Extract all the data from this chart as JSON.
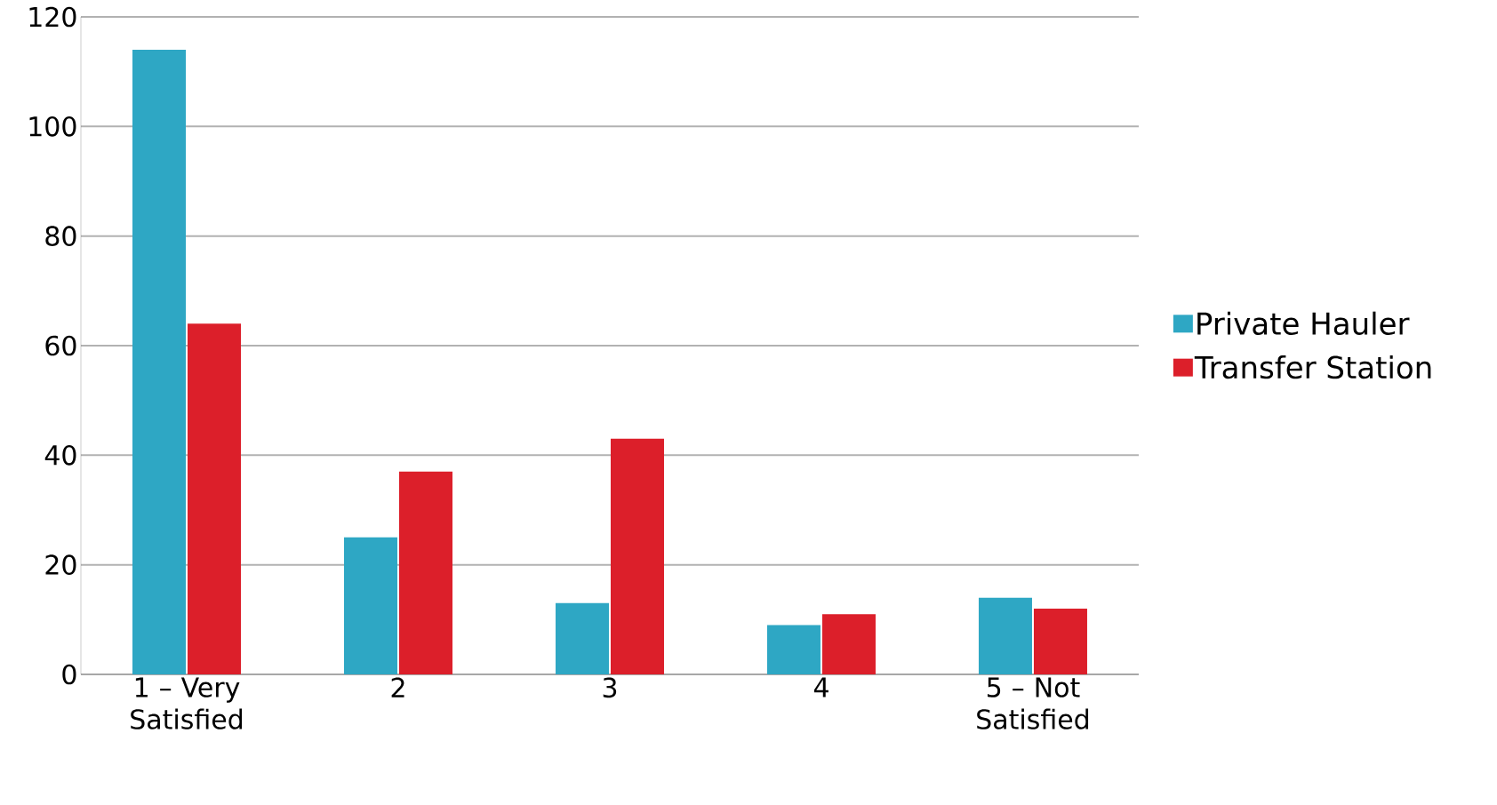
{
  "chart_data": {
    "type": "bar",
    "categories": [
      "1 – Very Satisfied",
      "2",
      "3",
      "4",
      "5 – Not Satisfied"
    ],
    "series": [
      {
        "name": "Private Hauler",
        "color": "#2ea7c4",
        "values": [
          114,
          25,
          13,
          9,
          14
        ]
      },
      {
        "name": "Transfer Station",
        "color": "#dc1f2a",
        "values": [
          64,
          37,
          43,
          11,
          12
        ]
      }
    ],
    "ylim": [
      0,
      120
    ],
    "yticks": [
      0,
      20,
      40,
      60,
      80,
      100,
      120
    ],
    "grid": "y",
    "legend": "right"
  }
}
